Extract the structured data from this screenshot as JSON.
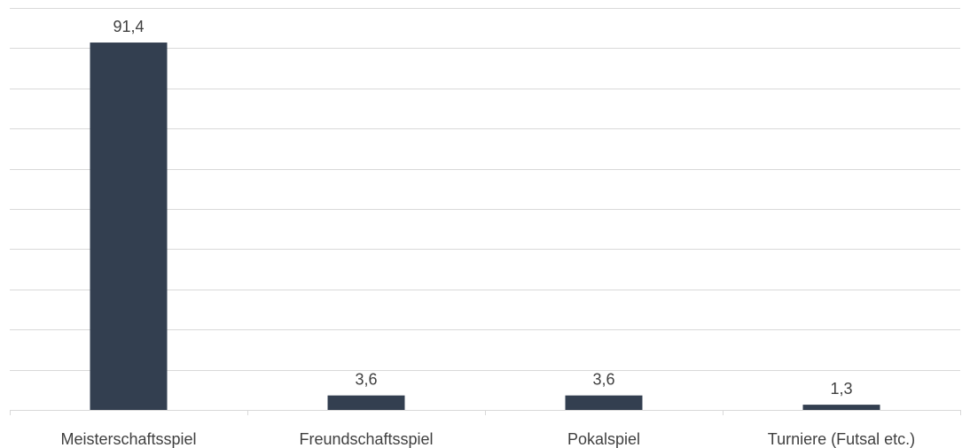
{
  "chart_data": {
    "type": "bar",
    "title": "",
    "xlabel": "",
    "ylabel": "",
    "categories": [
      "Meisterschaftsspiel",
      "Freundschaftsspiel",
      "Pokalspiel",
      "Turniere (Futsal etc.)"
    ],
    "values": [
      91.4,
      3.6,
      3.6,
      1.3
    ],
    "data_labels": [
      "91,4",
      "3,6",
      "3,6",
      "1,3"
    ],
    "ylim": [
      0,
      100
    ],
    "y_gridline_step": 10,
    "grid": true,
    "legend": "none",
    "colors": {
      "bar": "#333f50",
      "grid": "#d9d9d9",
      "axis": "#d9d9d9",
      "text": "#404040"
    }
  }
}
